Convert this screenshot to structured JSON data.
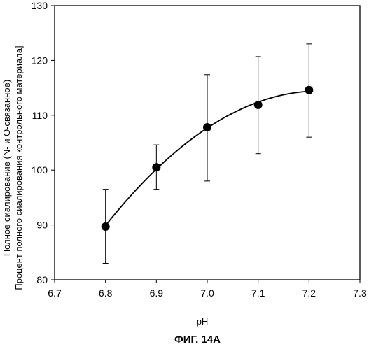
{
  "chart_data": {
    "type": "scatter",
    "title": "",
    "caption": "ФИГ. 14A",
    "xlabel": "pH",
    "ylabel_line1": "Полное сиалирование (N- и O-связанное)",
    "ylabel_line2": "Процент полного сиалирования контрольного материала]",
    "xlim": [
      6.7,
      7.3
    ],
    "ylim": [
      80,
      130
    ],
    "x_ticks": [
      "6.7",
      "6.8",
      "6.9",
      "7.0",
      "7.1",
      "7.2",
      "7.3"
    ],
    "y_ticks": [
      "80",
      "90",
      "100",
      "110",
      "120",
      "130"
    ],
    "grid": false,
    "legend": "none",
    "fit_line": "quadratic trend curve through points",
    "series": [
      {
        "x": [
          6.8,
          6.9,
          7.0,
          7.1,
          7.2
        ],
        "y": [
          89.7,
          100.5,
          107.8,
          111.9,
          114.6
        ],
        "error_low": [
          83.0,
          96.5,
          98.0,
          103.0,
          106.0
        ],
        "error_high": [
          96.5,
          104.6,
          117.4,
          120.7,
          123.0
        ]
      }
    ]
  }
}
